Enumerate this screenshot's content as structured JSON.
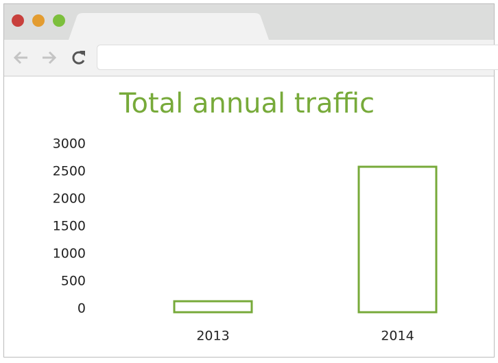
{
  "chart_data": {
    "type": "bar",
    "title": "Total annual traffic",
    "categories": [
      "2013",
      "2014"
    ],
    "values": [
      200,
      2650
    ],
    "color": "#77aa3a",
    "ylim": [
      0,
      3000
    ],
    "yticks": [
      0,
      500,
      1000,
      1500,
      2000,
      2500,
      3000
    ],
    "grid": false
  }
}
